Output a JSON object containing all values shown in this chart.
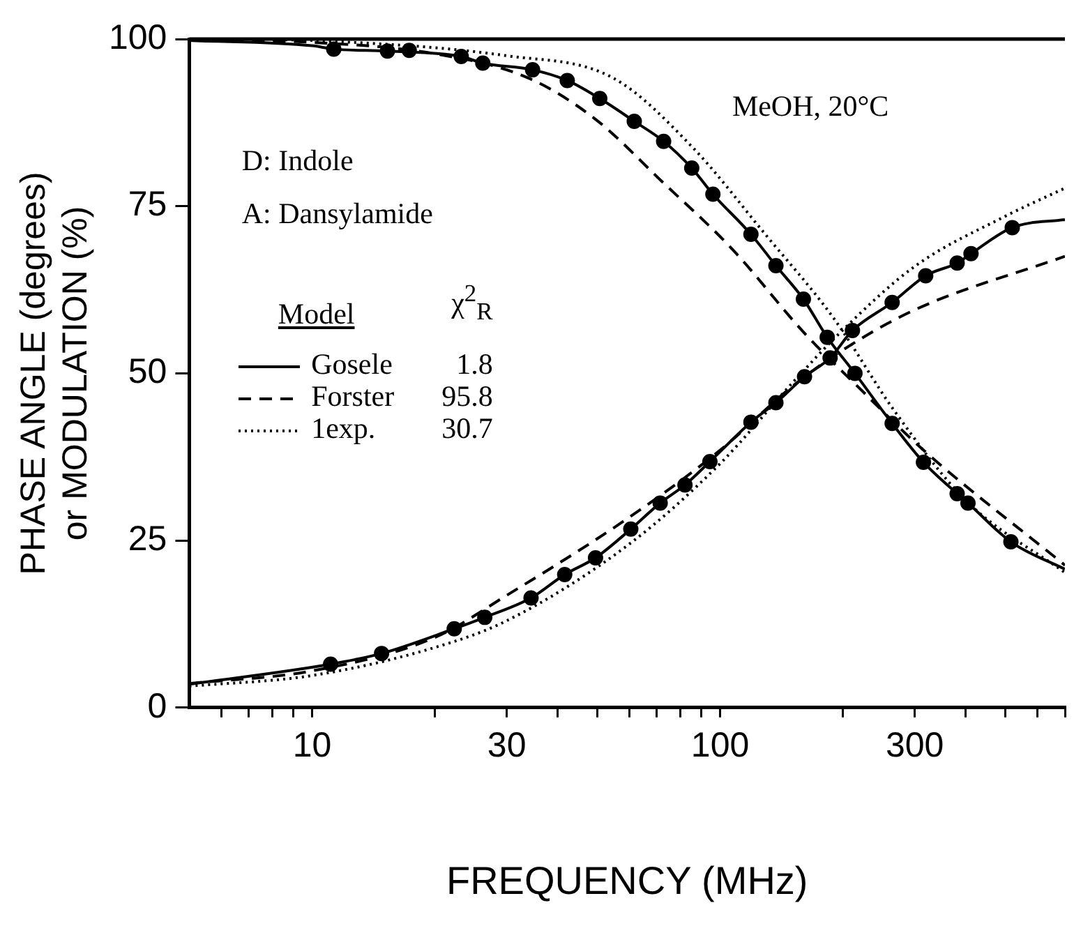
{
  "chart_data": {
    "type": "line",
    "xlabel": "FREQUENCY (MHz)",
    "ylabel": "PHASE ANGLE (degrees)\nor MODULATION (%)",
    "log": "x",
    "xlim": [
      5,
      700
    ],
    "ylim": [
      0,
      100
    ],
    "xticks": [
      {
        "value": 6,
        "label": null
      },
      {
        "value": 7,
        "label": null
      },
      {
        "value": 8,
        "label": null
      },
      {
        "value": 9,
        "label": null
      },
      10,
      {
        "value": 20,
        "label": null
      },
      30,
      {
        "value": 40,
        "label": null
      },
      {
        "value": 50,
        "label": null
      },
      {
        "value": 60,
        "label": null
      },
      {
        "value": 70,
        "label": null
      },
      {
        "value": 80,
        "label": null
      },
      {
        "value": 90,
        "label": null
      },
      100,
      {
        "value": 200,
        "label": null
      },
      300,
      {
        "value": 400,
        "label": null
      },
      {
        "value": 500,
        "label": null
      },
      {
        "value": 600,
        "label": null
      },
      {
        "value": 700,
        "label": null
      }
    ],
    "yticks": [
      0,
      25,
      50,
      75,
      100
    ],
    "grid": false,
    "legend": "left",
    "legend_title": "Model",
    "annotations": [
      "MeOH, 20°C",
      "D: Indole",
      "A: Dansylamide",
      "χ$^{2}$$_{R}$",
      "1.8",
      "95.8",
      "30.7"
    ],
    "series": [
      {
        "name": "Gosele",
        "color": "#000000",
        "line_style": "solid",
        "marker": "none",
        "x": [
          5,
          11.1,
          14.8,
          22.3,
          26.5,
          34.4,
          41.6,
          49.5,
          60.4,
          71.3,
          82,
          94.4,
          119,
          137,
          161,
          186,
          211,
          264,
          319,
          381,
          412,
          520,
          700
        ],
        "values": [
          3.5,
          6.5,
          8.1,
          11.8,
          13.5,
          16.4,
          19.9,
          22.4,
          26.7,
          30.6,
          33.3,
          36.8,
          42.7,
          45.6,
          49.5,
          52.3,
          56.4,
          60.6,
          64.6,
          66.5,
          67.9,
          71.8,
          73
        ]
      },
      {
        "name": "Forster",
        "color": "#000000",
        "line_style": "dashed",
        "marker": "none",
        "x": [
          5,
          10,
          20,
          30,
          60,
          100,
          150,
          200,
          300,
          700
        ],
        "values": [
          3.6,
          5.5,
          10.5,
          16.8,
          28.5,
          38.5,
          48,
          53.5,
          59.5,
          67.5
        ]
      },
      {
        "name": "1exp.",
        "color": "#000000",
        "line_style": "dotted",
        "marker": "none",
        "x": [
          5,
          10,
          20,
          30,
          60,
          100,
          150,
          200,
          300,
          500,
          700
        ],
        "values": [
          3.2,
          4.8,
          9,
          13,
          24.5,
          36.5,
          48.5,
          56.5,
          66,
          73.5,
          77.7
        ]
      },
      {
        "color": "#000000",
        "line_style": "solid",
        "marker": "none",
        "x": [
          5,
          10,
          11.3,
          15.3,
          23.2,
          26.2,
          34.7,
          42.2,
          50.7,
          61.6,
          72.7,
          85.2,
          96,
          119,
          137,
          160,
          183,
          214,
          264,
          315,
          381,
          405,
          516,
          700
        ],
        "values": [
          99.8,
          99,
          98.5,
          98.2,
          97.4,
          96.4,
          95.4,
          93.8,
          91.1,
          87.7,
          84.7,
          80.7,
          76.8,
          70.8,
          66.1,
          61.1,
          55.4,
          50,
          42.5,
          36.7,
          32,
          30.6,
          24.8,
          20.7
        ]
      },
      {
        "color": "#000000",
        "line_style": "dashed",
        "marker": "none",
        "x": [
          5,
          10,
          20,
          33.8,
          49.5,
          72,
          107,
          161,
          221,
          314,
          700
        ],
        "values": [
          99.9,
          99.5,
          97.8,
          94.2,
          88,
          78.7,
          68.6,
          56,
          47.6,
          38.6,
          21.3
        ]
      },
      {
        "color": "#000000",
        "line_style": "dotted",
        "marker": "none",
        "x": [
          8,
          10,
          30,
          54.6,
          85,
          129,
          189,
          268,
          400,
          700
        ],
        "values": [
          99.9,
          99.8,
          97.5,
          94.2,
          84,
          70.8,
          58.4,
          44.3,
          31,
          20.2
        ]
      },
      {
        "type": "scatter",
        "color": "#000000",
        "marker": "circle",
        "x": [
          11.1,
          14.8,
          22.3,
          26.5,
          34.4,
          41.6,
          49.5,
          60.4,
          71.3,
          82,
          94.4,
          119,
          137,
          161,
          186,
          211,
          264,
          319,
          381,
          412,
          520
        ],
        "values": [
          6.5,
          8.1,
          11.8,
          13.5,
          16.4,
          19.9,
          22.4,
          26.7,
          30.6,
          33.3,
          36.8,
          42.7,
          45.6,
          49.5,
          52.3,
          56.4,
          60.6,
          64.6,
          66.5,
          67.9,
          71.8
        ]
      },
      {
        "type": "scatter",
        "color": "#000000",
        "marker": "circle",
        "x": [
          11.3,
          15.3,
          17.3,
          23.2,
          26.2,
          34.7,
          42.2,
          50.7,
          61.6,
          72.7,
          85.2,
          96,
          119,
          137,
          160,
          183,
          214,
          264,
          315,
          381,
          405,
          516
        ],
        "values": [
          98.5,
          98.2,
          98.3,
          97.4,
          96.4,
          95.4,
          93.8,
          91.1,
          87.7,
          84.7,
          80.7,
          76.8,
          70.8,
          66.1,
          61.1,
          55.4,
          50,
          42.5,
          36.7,
          32,
          30.6,
          24.8
        ]
      }
    ]
  }
}
